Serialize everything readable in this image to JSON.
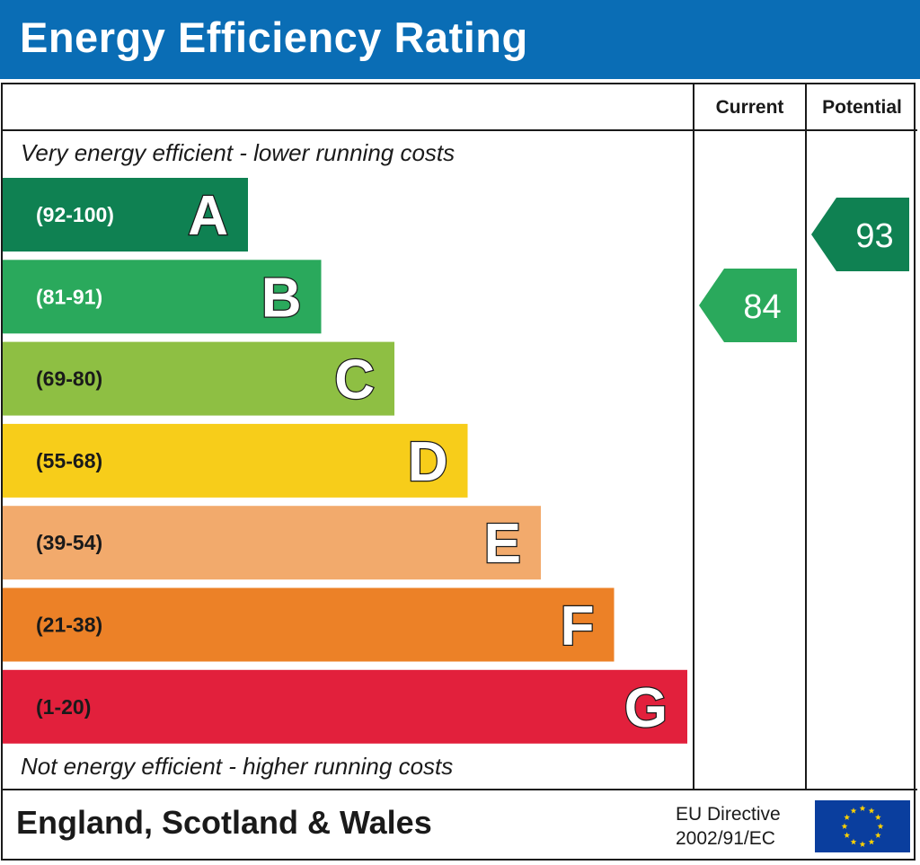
{
  "header": {
    "title": "Energy Efficiency Rating"
  },
  "columns": {
    "current": "Current",
    "potential": "Potential"
  },
  "captions": {
    "top": "Very energy efficient - lower running costs",
    "bottom": "Not energy efficient - higher running costs"
  },
  "chart_data": {
    "type": "bar",
    "categories": [
      "A",
      "B",
      "C",
      "D",
      "E",
      "F",
      "G"
    ],
    "ranges": [
      "(92-100)",
      "(81-91)",
      "(69-80)",
      "(55-68)",
      "(39-54)",
      "(21-38)",
      "(1-20)"
    ],
    "range_min": [
      92,
      81,
      69,
      55,
      39,
      21,
      1
    ],
    "range_max": [
      100,
      91,
      80,
      68,
      54,
      38,
      20
    ],
    "colors": [
      "#0f8152",
      "#2aa95c",
      "#8ebf43",
      "#f7cd1a",
      "#f2aa6c",
      "#ec8127",
      "#e2203c"
    ],
    "current": {
      "label": "84",
      "value": 84,
      "band": "B",
      "color": "#2aa95c"
    },
    "potential": {
      "label": "93",
      "value": 93,
      "band": "A",
      "color": "#0f8152"
    }
  },
  "footer": {
    "region": "England, Scotland & Wales",
    "directive_line1": "EU Directive",
    "directive_line2": "2002/91/EC",
    "flag_icon": "eu-flag-icon"
  }
}
